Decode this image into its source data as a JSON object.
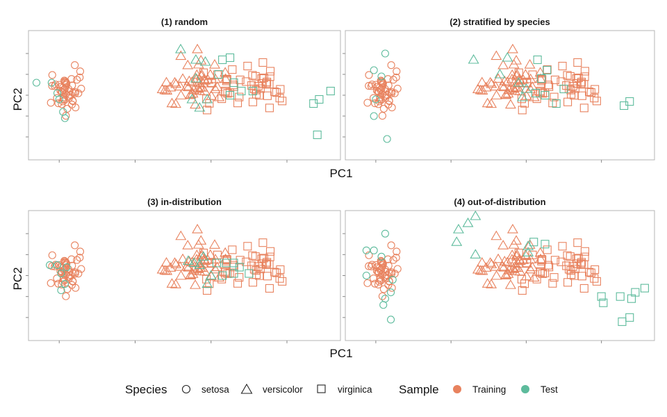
{
  "colors": {
    "training": "#E8825E",
    "test": "#5DBB9C",
    "panel_border": "#B4B4B4"
  },
  "axes": {
    "xlabel": "PC1",
    "ylabel": "PC2"
  },
  "legend": {
    "species_title": "Species",
    "species": [
      {
        "label": "setosa",
        "shape": "circle"
      },
      {
        "label": "versicolor",
        "shape": "triangle"
      },
      {
        "label": "virginica",
        "shape": "square"
      }
    ],
    "sample_title": "Sample",
    "samples": [
      {
        "label": "Training",
        "color": "#E8825E"
      },
      {
        "label": "Test",
        "color": "#5DBB9C"
      }
    ]
  },
  "chart_data": [
    {
      "type": "scatter",
      "title": "(1) random",
      "xlabel": "PC1",
      "ylabel": "PC2",
      "xlim": [
        -3.7,
        4.3
      ],
      "ylim": [
        -1.45,
        1.45
      ],
      "grid": false,
      "test_points": [
        [
          -3.6,
          0.3
        ],
        [
          -3.2,
          0.3
        ],
        [
          -3.05,
          0.05
        ],
        [
          -2.9,
          -0.4
        ],
        [
          -3.0,
          -0.1
        ],
        [
          -2.85,
          -0.55
        ],
        [
          0.2,
          1.1
        ],
        [
          0.6,
          0.85
        ],
        [
          0.85,
          0.8
        ],
        [
          0.6,
          0.4
        ],
        [
          0.5,
          -0.1
        ],
        [
          0.7,
          -0.3
        ],
        [
          0.9,
          -0.1
        ],
        [
          1.2,
          0.5
        ],
        [
          1.3,
          0.85
        ],
        [
          1.5,
          0.9
        ],
        [
          1.6,
          0.3
        ],
        [
          1.5,
          0.0
        ],
        [
          1.8,
          0.1
        ],
        [
          2.1,
          0.1
        ],
        [
          3.7,
          -0.2
        ],
        [
          3.85,
          -0.1
        ],
        [
          4.15,
          0.1
        ],
        [
          3.8,
          -0.95
        ]
      ]
    },
    {
      "type": "scatter",
      "title": "(2) stratified by species",
      "xlabel": "PC1",
      "ylabel": "PC2",
      "xlim": [
        -3.7,
        4.3
      ],
      "ylim": [
        -1.45,
        1.45
      ],
      "grid": false,
      "test_points": [
        [
          -2.75,
          1.0
        ],
        [
          -3.05,
          0.6
        ],
        [
          -2.85,
          0.45
        ],
        [
          -3.0,
          -0.1
        ],
        [
          -3.05,
          -0.5
        ],
        [
          -2.7,
          -1.05
        ],
        [
          -0.4,
          0.85
        ],
        [
          0.5,
          0.9
        ],
        [
          0.3,
          0.5
        ],
        [
          0.8,
          0.3
        ],
        [
          1.0,
          0.15
        ],
        [
          0.9,
          -0.05
        ],
        [
          1.3,
          0.85
        ],
        [
          1.4,
          0.4
        ],
        [
          1.55,
          0.6
        ],
        [
          1.5,
          0.0
        ],
        [
          1.25,
          0.05
        ],
        [
          2.0,
          0.15
        ],
        [
          1.8,
          -0.2
        ],
        [
          3.6,
          -0.25
        ],
        [
          3.75,
          -0.15
        ]
      ]
    },
    {
      "type": "scatter",
      "title": "(3) in-distribution",
      "xlabel": "PC1",
      "ylabel": "PC2",
      "xlim": [
        -3.7,
        4.3
      ],
      "ylim": [
        -1.45,
        1.45
      ],
      "grid": false,
      "test_points": [
        [
          -3.25,
          0.25
        ],
        [
          -3.05,
          0.25
        ],
        [
          -2.95,
          0.05
        ],
        [
          -2.85,
          -0.2
        ],
        [
          -2.8,
          0.2
        ],
        [
          -2.95,
          -0.35
        ],
        [
          0.4,
          0.35
        ],
        [
          0.55,
          0.3
        ],
        [
          0.7,
          0.25
        ],
        [
          0.8,
          0.45
        ],
        [
          1.0,
          0.0
        ],
        [
          0.9,
          -0.2
        ],
        [
          1.15,
          0.3
        ],
        [
          1.4,
          0.3
        ],
        [
          1.6,
          0.3
        ],
        [
          1.6,
          0.05
        ],
        [
          1.75,
          0.2
        ],
        [
          1.3,
          0.0
        ],
        [
          2.0,
          0.05
        ]
      ]
    },
    {
      "type": "scatter",
      "title": "(4) out-of-distribution",
      "xlabel": "PC1",
      "ylabel": "PC2",
      "xlim": [
        -3.7,
        4.3
      ],
      "ylim": [
        -1.45,
        1.45
      ],
      "grid": false,
      "test_points": [
        [
          -2.75,
          1.0
        ],
        [
          -3.05,
          0.6
        ],
        [
          -2.85,
          0.45
        ],
        [
          -3.25,
          0.6
        ],
        [
          -3.25,
          0.0
        ],
        [
          -2.55,
          -0.1
        ],
        [
          -2.6,
          -0.4
        ],
        [
          -2.75,
          -0.55
        ],
        [
          -2.8,
          -0.7
        ],
        [
          -2.6,
          -1.05
        ],
        [
          -0.8,
          1.1
        ],
        [
          -0.55,
          1.25
        ],
        [
          -0.35,
          1.45
        ],
        [
          -0.85,
          0.8
        ],
        [
          -0.35,
          0.5
        ],
        [
          1.05,
          0.7
        ],
        [
          1.05,
          0.55
        ],
        [
          1.2,
          0.8
        ],
        [
          1.5,
          0.75
        ],
        [
          3.0,
          -0.5
        ],
        [
          3.05,
          -0.65
        ],
        [
          3.5,
          -0.5
        ],
        [
          3.8,
          -0.55
        ],
        [
          3.9,
          -0.4
        ],
        [
          4.15,
          -0.3
        ],
        [
          3.75,
          -1.0
        ],
        [
          3.55,
          -1.1
        ]
      ]
    }
  ]
}
